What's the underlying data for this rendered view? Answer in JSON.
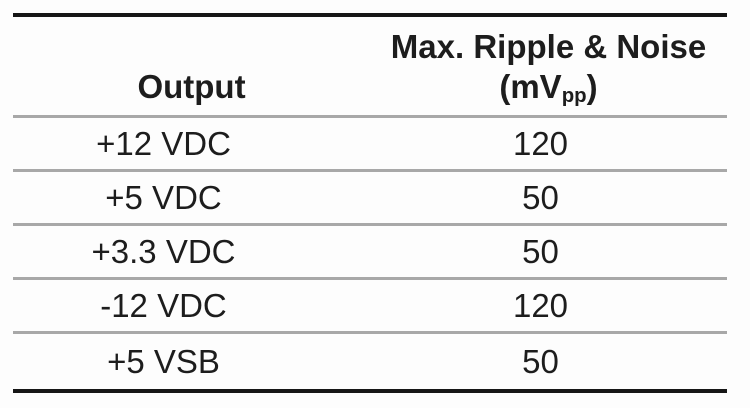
{
  "table": {
    "header": {
      "output_label": "Output",
      "ripple_line1": "Max. Ripple & Noise",
      "ripple_unit_pre": "(mV",
      "ripple_unit_sub": "pp",
      "ripple_unit_post": ")"
    },
    "rows": [
      {
        "output": "+12 VDC",
        "ripple": "120"
      },
      {
        "output": "+5 VDC",
        "ripple": "50"
      },
      {
        "output": "+3.3 VDC",
        "ripple": "50"
      },
      {
        "output": "-12 VDC",
        "ripple": "120"
      },
      {
        "output": "+5 VSB",
        "ripple": "50"
      }
    ]
  },
  "colors": {
    "text": "#1d1d1d",
    "rule_heavy": "#161616",
    "rule_light": "#a8a8a8",
    "background": "#fdfdfd"
  }
}
